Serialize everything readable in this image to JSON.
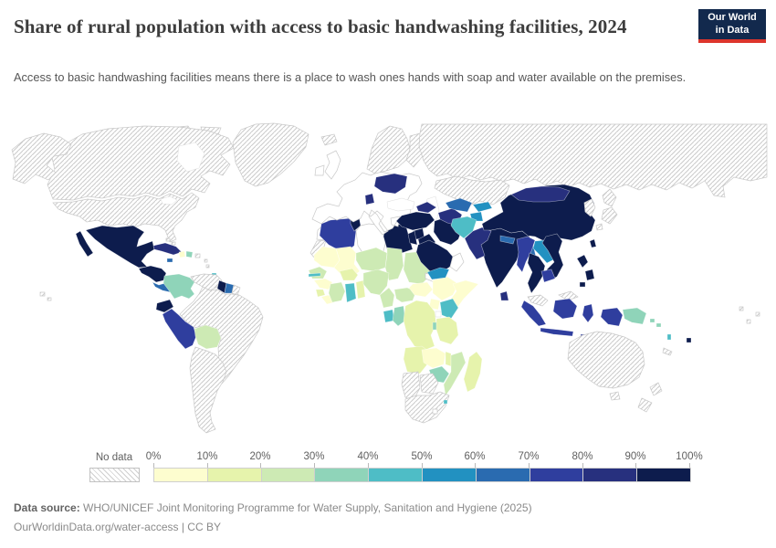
{
  "header": {
    "title": "Share of rural population with access to basic handwashing facilities, 2024",
    "subtitle": "Access to basic handwashing facilities means there is a place to wash ones hands with soap and water available on the premises.",
    "logo": {
      "line1": "Our World",
      "line2": "in Data",
      "bg_color": "#12294d",
      "accent_color": "#dd352c"
    }
  },
  "legend": {
    "no_data_label": "No data",
    "tick_labels": [
      "0%",
      "10%",
      "20%",
      "30%",
      "40%",
      "50%",
      "60%",
      "70%",
      "80%",
      "90%",
      "100%"
    ],
    "palette": [
      "#fdfdcf",
      "#e6f3ac",
      "#cdeab4",
      "#8fd4b9",
      "#4ebdc6",
      "#2291c1",
      "#2a6bb0",
      "#2f3e9e",
      "#27307e",
      "#0d1c4d"
    ]
  },
  "footer": {
    "source_label": "Data source:",
    "source_text": " WHO/UNICEF Joint Monitoring Programme for Water Supply, Sanitation and Hygiene (2025)",
    "link_text": "OurWorldinData.org/water-access | CC BY"
  },
  "chart_data": {
    "type": "heatmap",
    "subtype": "world-choropleth",
    "title": "Share of rural population with access to basic handwashing facilities",
    "year": "2024",
    "unit": "% of rural population",
    "legend_position": "bottom",
    "bin_ranges": [
      "0-10%",
      "10-20%",
      "20-30%",
      "30-40%",
      "40-50%",
      "50-60%",
      "60-70%",
      "70-80%",
      "80-90%",
      "90-100%"
    ],
    "bin_colors": [
      "#fdfdcf",
      "#e6f3ac",
      "#cdeab4",
      "#8fd4b9",
      "#4ebdc6",
      "#2291c1",
      "#2a6bb0",
      "#2f3e9e",
      "#27307e",
      "#0d1c4d"
    ],
    "regions": {
      "canada": "no-data",
      "arctic-islands": "no-data",
      "usa": "no-data",
      "alaska": "no-data",
      "greenland": "no-data",
      "hawaii": "no-data",
      "mexico": 10,
      "guatemala-honduras-nicaragua": 10,
      "costa-rica-panama": 7,
      "cuba": 9,
      "jamaica": 7,
      "haiti": 1,
      "dominican-republic": 4,
      "puerto-rico": "no-data",
      "bahamas": "no-data",
      "lesser-antilles": "no-data",
      "trinidad": 5,
      "colombia": 4,
      "venezuela": "no-data",
      "guyana": 10,
      "suriname": 7,
      "french-guiana": "no-data",
      "ecuador": 10,
      "peru": 8,
      "bolivia": 3,
      "brazil": "no-data",
      "southern-cone": "no-data",
      "iceland": "no-data",
      "uk": "none",
      "ireland": "none",
      "europe-mainland": "none",
      "scandinavia": "no-data",
      "ukraine": 9,
      "serbia": 9,
      "russia": "no-data",
      "kazakhstan": "no-data",
      "caucasus": 9,
      "turkey": 10,
      "syria": 10,
      "iraq": 10,
      "iran": 10,
      "israel-jordan": 10,
      "saudi-arabia": 10,
      "yemen": 6,
      "oman": "none",
      "turkmenistan": 9,
      "uzbekistan": 7,
      "kyrgyzstan": 6,
      "tajikistan": 6,
      "afghanistan": 5,
      "pakistan": 9,
      "india": 10,
      "nepal": 7,
      "bhutan": 8,
      "bangladesh": 7,
      "sri-lanka": 9,
      "china": 10,
      "mongolia": 9,
      "taiwan": 10,
      "korea": "no-data",
      "japan": "no-data",
      "myanmar": 8,
      "laos": 6,
      "thailand": 10,
      "vietnam": 10,
      "cambodia": 8,
      "malaysia": "no-data",
      "indonesia": 8,
      "philippines": 10,
      "papua-new-guinea": 4,
      "solomon-islands": 4,
      "vanuatu": 5,
      "fiji": 10,
      "new-caledonia": "no-data",
      "australia": "no-data",
      "new-zealand": "no-data",
      "polynesia": "no-data",
      "morocco": "none",
      "western-sahara": "no-data",
      "algeria": 8,
      "tunisia": 10,
      "libya": "none",
      "egypt": 10,
      "mauritania": 1,
      "mali": 1,
      "senegal": 3,
      "gambia": 5,
      "guinea": 1,
      "sierra-leone": 2,
      "liberia": 1,
      "cote-divoire": 3,
      "ghana": 5,
      "togo-benin": 2,
      "burkina-faso": 2,
      "niger": 3,
      "nigeria": 3,
      "chad": 3,
      "sudan": 3,
      "eritrea": "none",
      "ethiopia": 1,
      "somalia": 1,
      "south-sudan": 1,
      "uganda": 1,
      "kenya": 5,
      "cameroon": 3,
      "central-african-republic": 3,
      "gabon": 5,
      "congo": 4,
      "drc": 2,
      "rwanda-burundi": 4,
      "tanzania": 2,
      "angola": 2,
      "zambia": 1,
      "malawi": 2,
      "mozambique": 3,
      "zimbabwe": 4,
      "madagascar": 2,
      "namibia": "no-data",
      "botswana": "no-data",
      "south-africa": "no-data",
      "lesotho": "none",
      "eswatini": 5
    }
  }
}
